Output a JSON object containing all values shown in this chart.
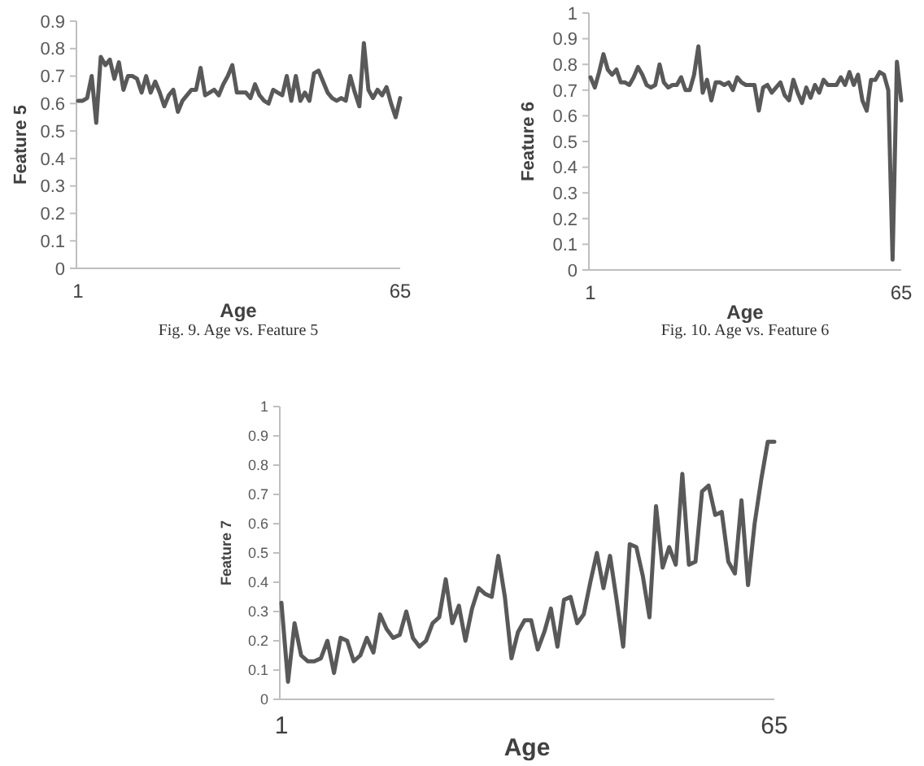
{
  "chart_data": [
    {
      "type": "line",
      "xlabel": "Age",
      "ylabel": "Feature 5",
      "annotations": [
        "Fig. 9.  Age vs. Feature 5"
      ],
      "ylim": [
        0,
        0.9
      ],
      "yticks": [
        0,
        0.1,
        0.2,
        0.3,
        0.4,
        0.5,
        0.6,
        0.7,
        0.8,
        0.9
      ],
      "categories": [
        "1",
        null,
        null,
        null,
        null,
        null,
        null,
        null,
        null,
        null,
        null,
        null,
        null,
        null,
        null,
        null,
        null,
        null,
        null,
        null,
        null,
        null,
        null,
        null,
        null,
        null,
        null,
        null,
        null,
        null,
        null,
        null,
        null,
        null,
        null,
        null,
        null,
        null,
        null,
        null,
        null,
        null,
        null,
        null,
        null,
        null,
        null,
        null,
        null,
        null,
        null,
        null,
        null,
        null,
        null,
        null,
        null,
        null,
        null,
        null,
        null,
        null,
        null,
        null,
        null,
        null,
        null,
        null,
        null,
        null,
        null,
        "65"
      ],
      "series": [
        {
          "color": "#595959",
          "values": [
            0.61,
            0.61,
            0.62,
            0.7,
            0.53,
            0.77,
            0.74,
            0.76,
            0.69,
            0.75,
            0.65,
            0.7,
            0.7,
            0.69,
            0.64,
            0.7,
            0.64,
            0.68,
            0.64,
            0.59,
            0.63,
            0.65,
            0.57,
            0.61,
            0.63,
            0.65,
            0.65,
            0.73,
            0.63,
            0.64,
            0.65,
            0.63,
            0.67,
            0.7,
            0.74,
            0.64,
            0.64,
            0.64,
            0.62,
            0.67,
            0.63,
            0.61,
            0.6,
            0.65,
            0.64,
            0.63,
            0.7,
            0.61,
            0.7,
            0.61,
            0.64,
            0.61,
            0.71,
            0.72,
            0.68,
            0.64,
            0.62,
            0.61,
            0.62,
            0.61,
            0.7,
            0.64,
            0.59,
            0.82,
            0.65,
            0.62,
            0.65,
            0.63,
            0.66,
            0.6,
            0.55,
            0.62
          ]
        }
      ]
    },
    {
      "type": "line",
      "xlabel": "Age",
      "ylabel": "Feature 6",
      "annotations": [
        "Fig. 10.  Age vs. Feature 6"
      ],
      "ylim": [
        0,
        1
      ],
      "yticks": [
        0,
        0.1,
        0.2,
        0.3,
        0.4,
        0.5,
        0.6,
        0.7,
        0.8,
        0.9,
        1
      ],
      "categories": [
        "1",
        null,
        null,
        null,
        null,
        null,
        null,
        null,
        null,
        null,
        null,
        null,
        null,
        null,
        null,
        null,
        null,
        null,
        null,
        null,
        null,
        null,
        null,
        null,
        null,
        null,
        null,
        null,
        null,
        null,
        null,
        null,
        null,
        null,
        null,
        null,
        null,
        null,
        null,
        null,
        null,
        null,
        null,
        null,
        null,
        null,
        null,
        null,
        null,
        null,
        null,
        null,
        null,
        null,
        null,
        null,
        null,
        null,
        null,
        null,
        null,
        null,
        null,
        null,
        null,
        null,
        null,
        null,
        null,
        null,
        null,
        null,
        "65"
      ],
      "series": [
        {
          "color": "#595959",
          "values": [
            0.75,
            0.71,
            0.77,
            0.84,
            0.78,
            0.76,
            0.78,
            0.73,
            0.73,
            0.72,
            0.75,
            0.79,
            0.76,
            0.72,
            0.71,
            0.72,
            0.8,
            0.73,
            0.71,
            0.72,
            0.72,
            0.75,
            0.7,
            0.7,
            0.76,
            0.87,
            0.69,
            0.74,
            0.66,
            0.73,
            0.73,
            0.72,
            0.73,
            0.7,
            0.75,
            0.73,
            0.72,
            0.72,
            0.72,
            0.62,
            0.71,
            0.72,
            0.69,
            0.71,
            0.73,
            0.68,
            0.66,
            0.74,
            0.69,
            0.65,
            0.71,
            0.67,
            0.72,
            0.69,
            0.74,
            0.72,
            0.72,
            0.72,
            0.75,
            0.72,
            0.77,
            0.72,
            0.76,
            0.66,
            0.62,
            0.74,
            0.74,
            0.77,
            0.76,
            0.7,
            0.04,
            0.81,
            0.66
          ]
        }
      ]
    },
    {
      "type": "line",
      "xlabel": "Age",
      "ylabel": "Feature 7",
      "ylim": [
        0,
        1
      ],
      "yticks": [
        0,
        0.1,
        0.2,
        0.3,
        0.4,
        0.5,
        0.6,
        0.7,
        0.8,
        0.9,
        1
      ],
      "categories": [
        "1",
        null,
        null,
        null,
        null,
        null,
        null,
        null,
        null,
        null,
        null,
        null,
        null,
        null,
        null,
        null,
        null,
        null,
        null,
        null,
        null,
        null,
        null,
        null,
        null,
        null,
        null,
        null,
        null,
        null,
        null,
        null,
        null,
        null,
        null,
        null,
        null,
        null,
        null,
        null,
        null,
        null,
        null,
        null,
        null,
        null,
        null,
        null,
        null,
        null,
        null,
        null,
        null,
        null,
        null,
        null,
        null,
        null,
        null,
        null,
        null,
        null,
        null,
        null,
        null,
        null,
        null,
        null,
        null,
        null,
        null,
        null,
        null,
        null,
        null,
        "65"
      ],
      "series": [
        {
          "color": "#595959",
          "values": [
            0.33,
            0.06,
            0.26,
            0.15,
            0.13,
            0.13,
            0.14,
            0.2,
            0.09,
            0.21,
            0.2,
            0.13,
            0.15,
            0.21,
            0.16,
            0.29,
            0.24,
            0.21,
            0.22,
            0.3,
            0.21,
            0.18,
            0.2,
            0.26,
            0.28,
            0.41,
            0.26,
            0.32,
            0.2,
            0.31,
            0.38,
            0.36,
            0.35,
            0.49,
            0.35,
            0.14,
            0.23,
            0.27,
            0.27,
            0.17,
            0.23,
            0.31,
            0.18,
            0.34,
            0.35,
            0.26,
            0.29,
            0.4,
            0.5,
            0.38,
            0.49,
            0.34,
            0.18,
            0.53,
            0.52,
            0.42,
            0.28,
            0.66,
            0.45,
            0.52,
            0.46,
            0.77,
            0.46,
            0.47,
            0.71,
            0.73,
            0.63,
            0.64,
            0.47,
            0.43,
            0.68,
            0.39,
            0.6,
            0.75,
            0.88,
            0.88
          ]
        }
      ]
    }
  ]
}
